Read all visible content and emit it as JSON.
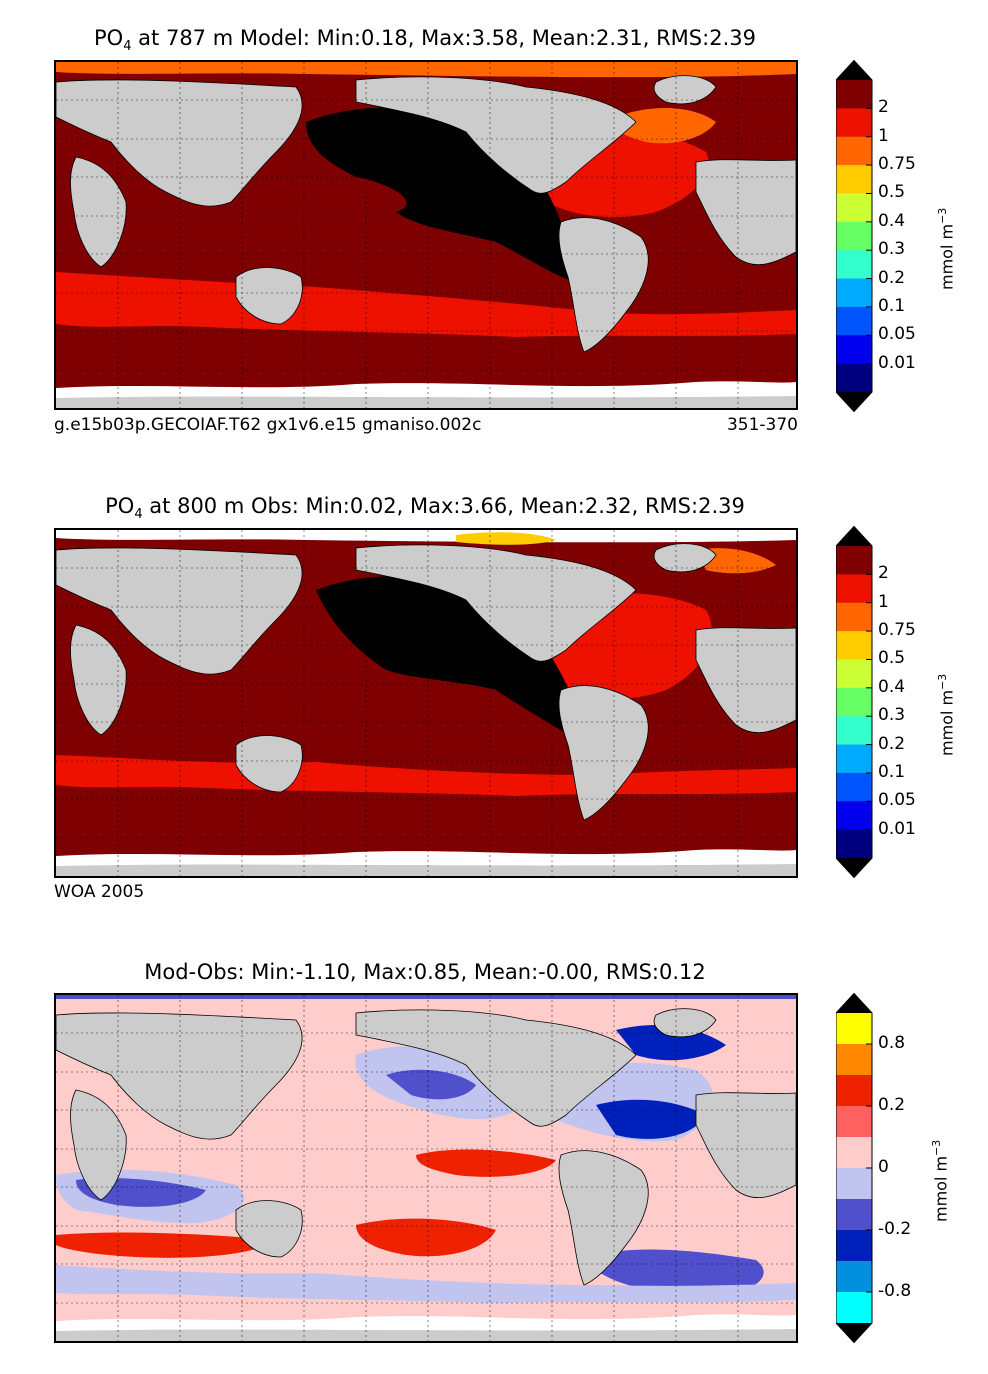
{
  "panels": [
    {
      "title_prefix": "PO",
      "title_sub": "4",
      "title_rest": " at 787 m Model: Min:0.18, Max:3.58, Mean:2.31, RMS:2.39",
      "caption_left": "g.e15b03p.GECOIAF.T62 gx1v6.e15 gmaniso.002c",
      "caption_right": "351-370"
    },
    {
      "title_prefix": "PO",
      "title_sub": "4",
      "title_rest": " at 800 m Obs: Min:0.02, Max:3.66, Mean:2.32, RMS:2.39",
      "caption_left": "WOA 2005",
      "caption_right": ""
    },
    {
      "title_prefix": "",
      "title_sub": "",
      "title_rest": "Mod-Obs: Min:-1.10, Max:0.85, Mean:-0.00, RMS:0.12",
      "caption_left": "",
      "caption_right": ""
    }
  ],
  "colorbars": {
    "value": {
      "unit": "mmol m",
      "unit_exp": "−3",
      "ticks": [
        "2",
        "1",
        "0.75",
        "0.5",
        "0.4",
        "0.3",
        "0.2",
        "0.1",
        "0.05",
        "0.01"
      ],
      "colors": [
        "#7f0000",
        "#ee1100",
        "#ff6600",
        "#ffcc00",
        "#ccff33",
        "#66ff66",
        "#33ffcc",
        "#00aaff",
        "#0055ff",
        "#0000ee",
        "#00007f"
      ],
      "top_arrow": "#000000",
      "bottom_arrow": "#000000"
    },
    "diff": {
      "unit": "mmol m",
      "unit_exp": "−3",
      "ticks": [
        "0.8",
        "0.2",
        "0",
        "-0.2",
        "-0.8"
      ],
      "colors": [
        "#ffff00",
        "#ff8800",
        "#ee2200",
        "#ff6060",
        "#ffcccc",
        "#c0c4ee",
        "#5050cc",
        "#0020bb",
        "#0090dd",
        "#00ffff"
      ],
      "top_arrow": "#000000",
      "bottom_arrow": "#000000"
    }
  },
  "chart_data": [
    {
      "type": "heatmap",
      "title": "PO4 at 787 m Model: Min:0.18, Max:3.58, Mean:2.31, RMS:2.39",
      "stats": {
        "min": 0.18,
        "max": 3.58,
        "mean": 2.31,
        "rms": 2.39
      },
      "colorbar_levels": [
        0.01,
        0.05,
        0.1,
        0.2,
        0.3,
        0.4,
        0.5,
        0.75,
        1,
        2
      ],
      "colorbar_label": "mmol m^-3",
      "grid": true
    },
    {
      "type": "heatmap",
      "title": "PO4 at 800 m Obs: Min:0.02, Max:3.66, Mean:2.32, RMS:2.39",
      "stats": {
        "min": 0.02,
        "max": 3.66,
        "mean": 2.32,
        "rms": 2.39
      },
      "colorbar_levels": [
        0.01,
        0.05,
        0.1,
        0.2,
        0.3,
        0.4,
        0.5,
        0.75,
        1,
        2
      ],
      "colorbar_label": "mmol m^-3",
      "grid": true
    },
    {
      "type": "heatmap",
      "title": "Mod-Obs: Min:-1.10, Max:0.85, Mean:-0.00, RMS:0.12",
      "stats": {
        "min": -1.1,
        "max": 0.85,
        "mean": -0.0,
        "rms": 0.12
      },
      "colorbar_levels": [
        -0.8,
        -0.2,
        0,
        0.2,
        0.8
      ],
      "colorbar_label": "mmol m^-3",
      "grid": true
    }
  ]
}
